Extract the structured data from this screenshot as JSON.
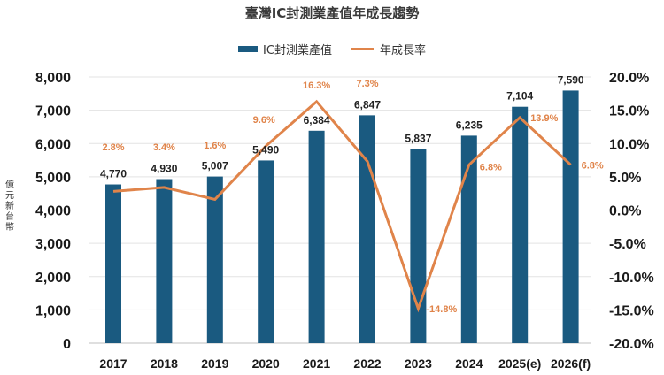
{
  "chart_data": {
    "type": "bar+line",
    "title": "臺灣IC封測業產值年成長趨勢",
    "categories": [
      "2017",
      "2018",
      "2019",
      "2020",
      "2021",
      "2022",
      "2023",
      "2024",
      "2025(e)",
      "2026(f)"
    ],
    "series": [
      {
        "name": "IC封測業產值",
        "type": "bar",
        "axis": "left",
        "color": "#1a5a80",
        "values": [
          4770,
          4930,
          5007,
          5490,
          6384,
          6847,
          5837,
          6235,
          7104,
          7590
        ],
        "labels": [
          "4,770",
          "4,930",
          "5,007",
          "5,490",
          "6,384",
          "6,847",
          "5,837",
          "6,235",
          "7,104",
          "7,590"
        ]
      },
      {
        "name": "年成長率",
        "type": "line",
        "axis": "right",
        "color": "#e0844a",
        "values": [
          2.8,
          3.4,
          1.6,
          9.6,
          16.3,
          7.3,
          -14.8,
          6.8,
          13.9,
          6.8
        ],
        "labels": [
          "2.8%",
          "3.4%",
          "1.6%",
          "9.6%",
          "16.3%",
          "7.3%",
          "-14.8%",
          "6.8%",
          "13.9%",
          "6.8%"
        ]
      }
    ],
    "ylabel": "億元新台幣",
    "ylabel_right": "",
    "xlabel": "",
    "ylim": [
      0,
      8000
    ],
    "ylim_right": [
      -20,
      20
    ],
    "yticks": [
      "8,000",
      "7,000",
      "6,000",
      "5,000",
      "4,000",
      "3,000",
      "2,000",
      "1,000",
      "0"
    ],
    "yticks_right": [
      "20.0%",
      "15.0%",
      "10.0%",
      "5.0%",
      "0.0%",
      "-5.0%",
      "-10.0%",
      "-15.0%",
      "-20.0%"
    ],
    "grid": true,
    "legend": "top-center"
  },
  "legend": {
    "bar_label": "IC封測業產值",
    "line_label": "年成長率"
  }
}
